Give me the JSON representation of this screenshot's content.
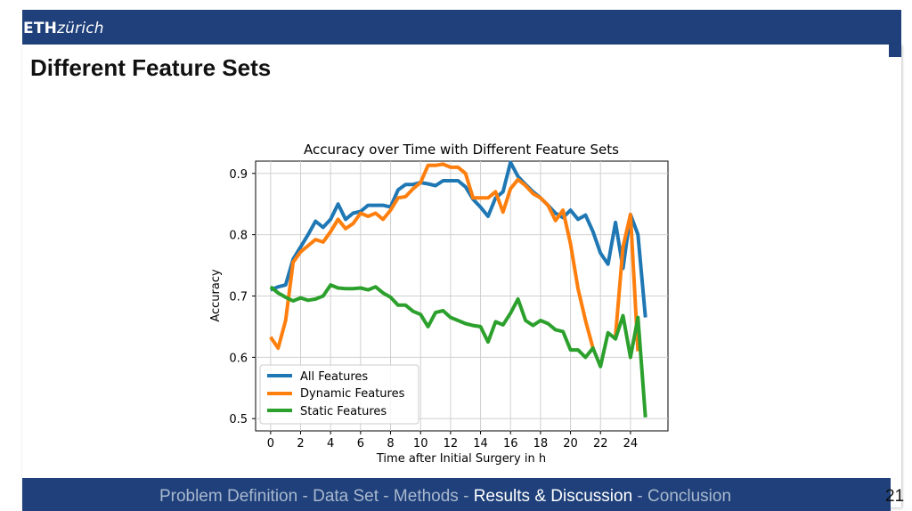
{
  "header": {
    "logo_bold": "ETH",
    "logo_italic": "zürich"
  },
  "slide": {
    "title": "Different Feature Sets",
    "page_number": "21"
  },
  "footer": {
    "items": [
      {
        "label": "Problem Definition",
        "active": false
      },
      {
        "label": "Data Set",
        "active": false
      },
      {
        "label": "Methods",
        "active": false
      },
      {
        "label": "Results & Discussion",
        "active": true
      },
      {
        "label": "Conclusion",
        "active": false
      }
    ],
    "separator": " - "
  },
  "colors": {
    "brand": "#1f407a",
    "all": "#1f77b4",
    "dynamic": "#ff7f0e",
    "static": "#2ca02c"
  },
  "chart_data": {
    "type": "line",
    "title": "Accuracy over Time with Different Feature Sets",
    "xlabel": "Time after Initial Surgery in h",
    "ylabel": "Accuracy",
    "xlim": [
      -1,
      26.5
    ],
    "ylim": [
      0.48,
      0.92
    ],
    "xticks": [
      0,
      2,
      4,
      6,
      8,
      10,
      12,
      14,
      16,
      18,
      20,
      22,
      24
    ],
    "yticks": [
      0.5,
      0.6,
      0.7,
      0.8,
      0.9
    ],
    "grid": true,
    "legend_position": "lower-left",
    "x": [
      0,
      0.5,
      1,
      1.5,
      2,
      2.5,
      3,
      3.5,
      4,
      4.5,
      5,
      5.5,
      6,
      6.5,
      7,
      7.5,
      8,
      8.5,
      9,
      9.5,
      10,
      10.5,
      11,
      11.5,
      12,
      12.5,
      13,
      13.5,
      14,
      14.5,
      15,
      15.5,
      16,
      16.5,
      17,
      17.5,
      18,
      18.5,
      19,
      19.5,
      20,
      20.5,
      21,
      21.5,
      22,
      22.5,
      23,
      23.5,
      24,
      24.5,
      25
    ],
    "series": [
      {
        "name": "All Features",
        "color": "#1f77b4",
        "values": [
          0.71,
          0.715,
          0.718,
          0.76,
          0.78,
          0.8,
          0.822,
          0.812,
          0.825,
          0.85,
          0.825,
          0.835,
          0.838,
          0.848,
          0.848,
          0.848,
          0.845,
          0.873,
          0.882,
          0.882,
          0.885,
          0.883,
          0.88,
          0.888,
          0.888,
          0.888,
          0.878,
          0.858,
          0.845,
          0.83,
          0.86,
          0.87,
          0.918,
          0.895,
          0.882,
          0.87,
          0.86,
          0.848,
          0.835,
          0.828,
          0.84,
          0.825,
          0.832,
          0.805,
          0.77,
          0.752,
          0.82,
          0.745,
          0.833,
          0.8,
          0.665
        ]
      },
      {
        "name": "Dynamic Features",
        "color": "#ff7f0e",
        "values": [
          0.633,
          0.615,
          0.66,
          0.755,
          0.772,
          0.782,
          0.792,
          0.788,
          0.805,
          0.825,
          0.81,
          0.818,
          0.835,
          0.83,
          0.835,
          0.825,
          0.84,
          0.86,
          0.862,
          0.875,
          0.885,
          0.913,
          0.913,
          0.915,
          0.91,
          0.91,
          0.9,
          0.86,
          0.86,
          0.86,
          0.87,
          0.837,
          0.875,
          0.89,
          0.88,
          0.867,
          0.86,
          0.848,
          0.823,
          0.84,
          0.785,
          0.712,
          0.66,
          0.615,
          null,
          null,
          0.635,
          0.78,
          0.833,
          0.61,
          null
        ]
      },
      {
        "name": "Static Features",
        "color": "#2ca02c",
        "values": [
          0.715,
          0.705,
          0.698,
          0.692,
          0.697,
          0.693,
          0.695,
          0.7,
          0.718,
          0.713,
          0.712,
          0.712,
          0.713,
          0.71,
          0.715,
          0.705,
          0.698,
          0.685,
          0.685,
          0.675,
          0.67,
          0.65,
          0.673,
          0.676,
          0.665,
          0.66,
          0.655,
          0.652,
          0.65,
          0.625,
          0.658,
          0.653,
          0.672,
          0.695,
          0.66,
          0.652,
          0.66,
          0.655,
          0.645,
          0.642,
          0.612,
          0.612,
          0.6,
          0.615,
          0.585,
          0.64,
          0.63,
          0.668,
          0.6,
          0.665,
          0.502
        ]
      }
    ]
  }
}
